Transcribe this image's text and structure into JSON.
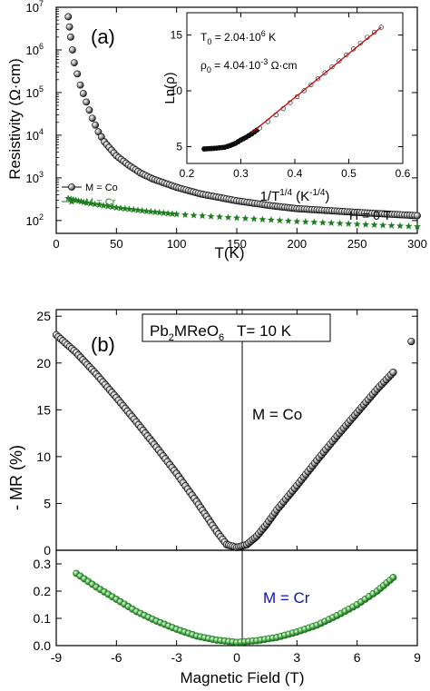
{
  "colors": {
    "co": "#000000",
    "cr": "#1e7d1e",
    "fit": "#cc0000",
    "crLabel": "#1010c0"
  },
  "chart_data": [
    {
      "type": "scatter",
      "panel_label": "(a)",
      "xlabel": "T(K)",
      "ylabel": "Resistivity (Ω·cm)",
      "xlim": [
        0,
        300
      ],
      "ylim": [
        50,
        10000000
      ],
      "yscale": "log",
      "xticks": [
        0,
        50,
        100,
        150,
        200,
        250,
        300
      ],
      "yticks": [
        {
          "value": 100,
          "base": "10",
          "exp": "2"
        },
        {
          "value": 1000,
          "base": "10",
          "exp": "3"
        },
        {
          "value": 10000,
          "base": "10",
          "exp": "4"
        },
        {
          "value": 100000,
          "base": "10",
          "exp": "5"
        },
        {
          "value": 1000000,
          "base": "10",
          "exp": "6"
        },
        {
          "value": 10000000,
          "base": "10",
          "exp": "7"
        }
      ],
      "annotation": "H = 0 T",
      "legend": {
        "placement": "left",
        "entries": [
          "M = Co",
          "M = Cr"
        ]
      },
      "series": [
        {
          "name": "M = Co",
          "marker": "circle",
          "x": [
            10,
            12,
            15,
            20,
            25,
            30,
            35,
            40,
            50,
            60,
            70,
            80,
            100,
            120,
            150,
            180,
            200,
            250,
            300
          ],
          "y": [
            6000000,
            2000000,
            500000,
            150000,
            60000,
            25000,
            12000,
            7000,
            3300,
            2000,
            1300,
            950,
            600,
            420,
            290,
            220,
            190,
            155,
            130
          ]
        },
        {
          "name": "M = Cr",
          "marker": "star",
          "x": [
            10,
            25,
            50,
            75,
            100,
            150,
            200,
            250,
            300
          ],
          "y": [
            330,
            260,
            200,
            165,
            140,
            115,
            95,
            82,
            72
          ]
        }
      ]
    },
    {
      "type": "line",
      "panel": "inset",
      "xlabel_main": "1/T",
      "xlabel_exp": "1/4",
      "xlabel_unit_main": "(K",
      "xlabel_unit_exp": "-1/4",
      "xlabel_unit_close": ")",
      "ylabel": "Ln(ρ)",
      "xlim": [
        0.2,
        0.6
      ],
      "ylim": [
        3.5,
        17
      ],
      "xticks": [
        "0.2",
        "0.3",
        "0.4",
        "0.5",
        "0.6"
      ],
      "yticks": [
        5,
        10,
        15
      ],
      "t0_label": "T",
      "t0_sub": "0",
      "t0_value": " = 2.04·10",
      "t0_exp": "6",
      "t0_unit": " K",
      "rho0_label": "ρ",
      "rho0_sub": "0",
      "rho0_value": " = 4.04·10",
      "rho0_exp": "-3",
      "rho0_unit": " Ω·cm",
      "series": [
        {
          "name": "data",
          "x": [
            0.232,
            0.25,
            0.27,
            0.28,
            0.29,
            0.3,
            0.31,
            0.32,
            0.33,
            0.34,
            0.35,
            0.37,
            0.4,
            0.43,
            0.46,
            0.5,
            0.53,
            0.56
          ],
          "y": [
            4.8,
            4.85,
            4.95,
            5.1,
            5.3,
            5.6,
            5.85,
            6.15,
            6.5,
            6.85,
            7.25,
            8.05,
            9.3,
            10.55,
            11.8,
            13.4,
            14.65,
            15.7
          ]
        },
        {
          "name": "fit",
          "x": [
            0.32,
            0.56
          ],
          "y": [
            6.25,
            15.7
          ]
        }
      ]
    },
    {
      "type": "scatter",
      "panel_label": "(b)",
      "title_main": "Pb",
      "title_sub1": "2",
      "title_mid": "MReO",
      "title_sub2": "6",
      "title_tail": "   T= 10 K",
      "ylabel": "- MR (%)",
      "xlim": [
        -9,
        9
      ],
      "ylim": [
        0,
        25
      ],
      "yticks": [
        0,
        5,
        10,
        15,
        20,
        25
      ],
      "series_label": "M = Co",
      "series": [
        {
          "name": "M = Co",
          "x": [
            -9,
            -8,
            -7,
            -6,
            -5,
            -4,
            -3,
            -2,
            -1.5,
            -1,
            -0.5,
            0,
            0.5,
            1,
            1.5,
            2,
            3,
            4,
            5,
            6,
            7,
            7.8
          ],
          "y": [
            23.0,
            21.1,
            18.8,
            16.3,
            13.7,
            11.0,
            8.2,
            5.2,
            3.6,
            2.0,
            0.6,
            0.3,
            0.6,
            1.5,
            2.8,
            4.3,
            6.9,
            9.6,
            12.2,
            14.7,
            17.2,
            19.0
          ]
        }
      ],
      "outlier": {
        "x": 8.7,
        "y": 22.3
      }
    },
    {
      "type": "scatter",
      "xlabel": "Magnetic Field (T)",
      "xlim": [
        -9,
        9
      ],
      "ylim": [
        0,
        0.35
      ],
      "xticks": [
        -9,
        -6,
        -3,
        0,
        3,
        6,
        9
      ],
      "yticks": [
        "0.0",
        "0.1",
        "0.2",
        "0.3"
      ],
      "series_label": "M = Cr",
      "series": [
        {
          "name": "M = Cr",
          "x": [
            -8,
            -7,
            -6,
            -5,
            -4,
            -3,
            -2,
            -1,
            0,
            1,
            2,
            3,
            4,
            5,
            6,
            7,
            7.8
          ],
          "y": [
            0.265,
            0.215,
            0.17,
            0.125,
            0.09,
            0.06,
            0.035,
            0.02,
            0.012,
            0.018,
            0.03,
            0.05,
            0.075,
            0.11,
            0.15,
            0.2,
            0.25
          ]
        }
      ]
    }
  ]
}
